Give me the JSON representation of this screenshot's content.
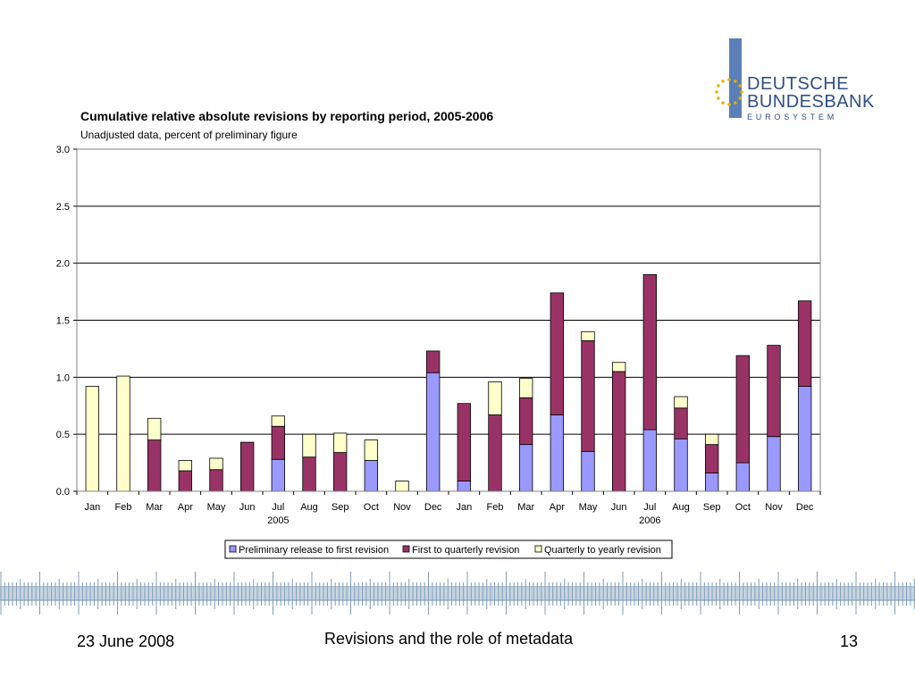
{
  "logo": {
    "line1": "DEUTSCHE",
    "line2": "BUNDESBANK",
    "line3": "EUROSYSTEM",
    "colors": {
      "bar": "#5b7fb8",
      "text": "#2f4f86",
      "stars": "#e3b400"
    }
  },
  "chart_data": {
    "type": "bar",
    "stacked": true,
    "title": "Cumulative relative absolute revisions by reporting period, 2005-2006",
    "subtitle": "Unadjusted data, percent of preliminary figure",
    "xlabel": "",
    "ylabel": "",
    "ylim": [
      0,
      3.0
    ],
    "yticks": [
      "0.0",
      "0.5",
      "1.0",
      "1.5",
      "2.0",
      "2.5",
      "3.0"
    ],
    "grid": true,
    "legend_position": "bottom",
    "categories": [
      "Jan",
      "Feb",
      "Mar",
      "Apr",
      "May",
      "Jun",
      "Jul",
      "Aug",
      "Sep",
      "Oct",
      "Nov",
      "Dec",
      "Jan",
      "Feb",
      "Mar",
      "Apr",
      "May",
      "Jun",
      "Jul",
      "Aug",
      "Sep",
      "Oct",
      "Nov",
      "Dec"
    ],
    "year_labels": [
      {
        "label": "2005",
        "index": 6
      },
      {
        "label": "2006",
        "index": 18
      }
    ],
    "series": [
      {
        "name": "Preliminary release to first revision",
        "color": "#9999ff",
        "values": [
          0,
          0,
          0,
          0,
          0,
          0,
          0.28,
          0,
          0,
          0.27,
          0,
          1.04,
          0.09,
          0,
          0.41,
          0.67,
          0.35,
          0,
          0.54,
          0.46,
          0.16,
          0.25,
          0.48,
          0.92
        ]
      },
      {
        "name": "First to quarterly revision",
        "color": "#993366",
        "values": [
          0,
          0,
          0.45,
          0.18,
          0.19,
          0.43,
          0.29,
          0.3,
          0.34,
          0,
          0,
          0.19,
          0.68,
          0.67,
          0.41,
          1.07,
          0.97,
          1.05,
          1.36,
          0.27,
          0.25,
          0.94,
          0.8,
          0.75
        ]
      },
      {
        "name": "Quarterly to yearly revision",
        "color": "#ffffcc",
        "values": [
          0.92,
          1.01,
          0.19,
          0.09,
          0.1,
          0,
          0.09,
          0.2,
          0.17,
          0.18,
          0.09,
          0,
          0,
          0.29,
          0.17,
          0,
          0.08,
          0.08,
          0,
          0.1,
          0.09,
          0,
          0,
          0
        ]
      }
    ]
  },
  "footer": {
    "date": "23 June 2008",
    "title": "Revisions and the role of metadata",
    "page": "13"
  }
}
